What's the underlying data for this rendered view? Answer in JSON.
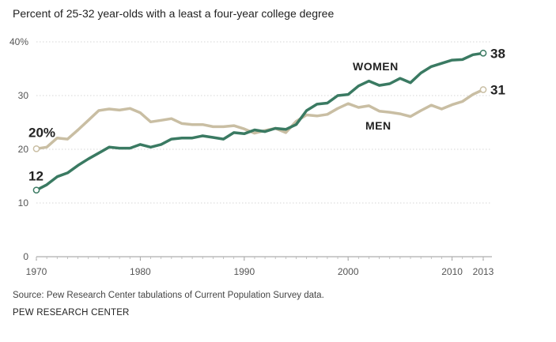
{
  "chart_data": {
    "type": "line",
    "title": "Percent of 25-32 year-olds with a least a four-year college degree",
    "xlabel": "",
    "ylabel": "",
    "xlim": [
      1970,
      2013
    ],
    "ylim": [
      0,
      40
    ],
    "y_ticks": [
      {
        "value": 0,
        "label": "0"
      },
      {
        "value": 10,
        "label": "10"
      },
      {
        "value": 20,
        "label": "20"
      },
      {
        "value": 30,
        "label": "30"
      },
      {
        "value": 40,
        "label": "40%"
      }
    ],
    "x_ticks": [
      {
        "value": 1970,
        "label": "1970"
      },
      {
        "value": 1980,
        "label": "1980"
      },
      {
        "value": 1990,
        "label": "1990"
      },
      {
        "value": 2000,
        "label": "2000"
      },
      {
        "value": 2010,
        "label": "2010"
      },
      {
        "value": 2013,
        "label": "2013"
      }
    ],
    "grid": true,
    "x": [
      1970,
      1971,
      1972,
      1973,
      1974,
      1975,
      1976,
      1977,
      1978,
      1979,
      1980,
      1981,
      1982,
      1983,
      1984,
      1985,
      1986,
      1987,
      1988,
      1989,
      1990,
      1991,
      1992,
      1993,
      1994,
      1995,
      1996,
      1997,
      1998,
      1999,
      2000,
      2001,
      2002,
      2003,
      2004,
      2005,
      2006,
      2007,
      2008,
      2009,
      2010,
      2011,
      2012,
      2013
    ],
    "series": [
      {
        "name": "WOMEN",
        "color": "#3a7a62",
        "values": [
          12.4,
          13.4,
          14.9,
          15.6,
          17.0,
          18.2,
          19.3,
          20.4,
          20.2,
          20.2,
          20.9,
          20.4,
          20.9,
          21.9,
          22.1,
          22.1,
          22.5,
          22.2,
          21.9,
          23.1,
          22.9,
          23.6,
          23.3,
          23.9,
          23.7,
          24.6,
          27.2,
          28.4,
          28.6,
          30.0,
          30.2,
          31.8,
          32.7,
          31.9,
          32.2,
          33.2,
          32.4,
          34.2,
          35.4,
          36.0,
          36.6,
          36.7,
          37.6,
          37.9
        ],
        "start_label": "12",
        "end_label": "38",
        "series_label": "WOMEN"
      },
      {
        "name": "MEN",
        "color": "#c9bea3",
        "values": [
          20.1,
          20.4,
          22.1,
          21.9,
          23.6,
          25.4,
          27.2,
          27.5,
          27.3,
          27.6,
          26.8,
          25.1,
          25.4,
          25.7,
          24.8,
          24.6,
          24.6,
          24.2,
          24.2,
          24.4,
          23.8,
          23.0,
          23.5,
          23.9,
          23.1,
          25.2,
          26.4,
          26.2,
          26.5,
          27.6,
          28.5,
          27.8,
          28.1,
          27.1,
          26.9,
          26.6,
          26.1,
          27.2,
          28.2,
          27.5,
          28.3,
          28.9,
          30.2,
          31.1
        ],
        "start_label": "20%",
        "end_label": "31",
        "series_label": "MEN"
      }
    ]
  },
  "source": "Source: Pew Research Center tabulations of Current Population Survey data.",
  "organization": "PEW RESEARCH CENTER"
}
